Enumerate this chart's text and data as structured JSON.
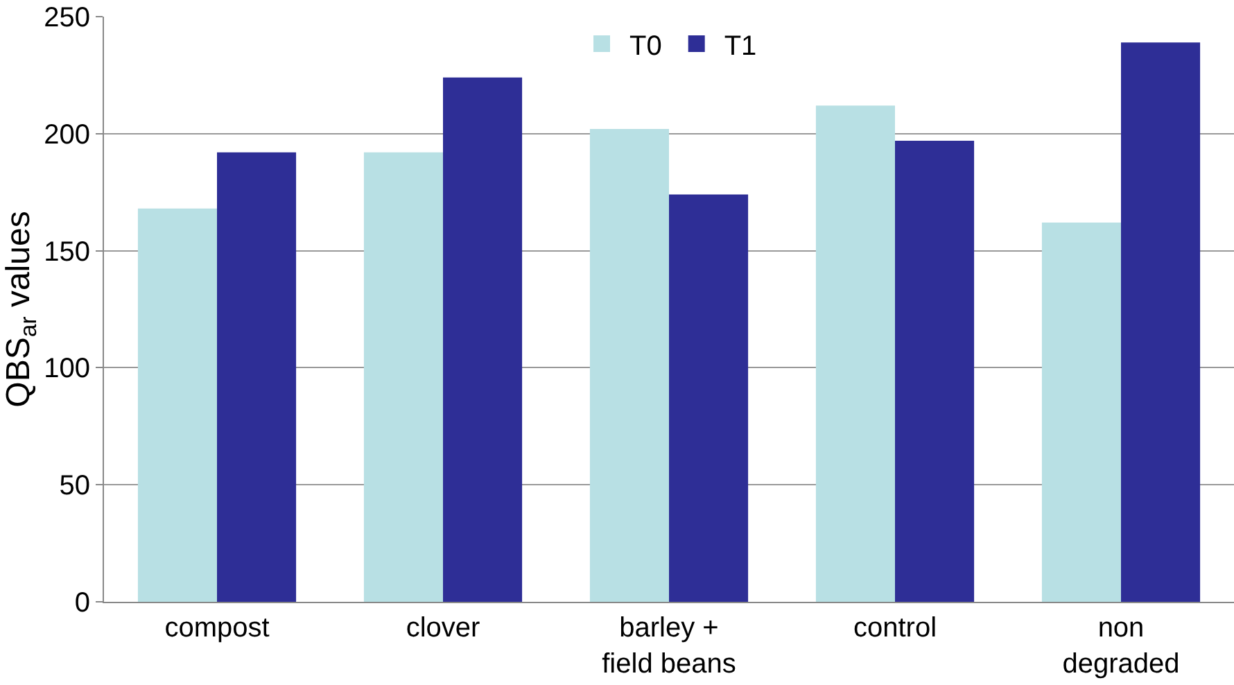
{
  "chart_data": {
    "type": "bar",
    "ylabel": "QBS$_{ar}$ values",
    "categories": [
      "compost",
      "clover",
      "barley +\nfield beans",
      "control",
      "non\ndegraded"
    ],
    "series": [
      {
        "name": "T0",
        "color": "#b8e0e4",
        "values": [
          168,
          192,
          202,
          212,
          162
        ]
      },
      {
        "name": "T1",
        "color": "#2e2e96",
        "values": [
          192,
          224,
          174,
          197,
          239
        ]
      }
    ],
    "ylim": [
      0,
      250
    ],
    "yticks": [
      0,
      50,
      100,
      150,
      200,
      250
    ],
    "grid": "y",
    "legend": "top"
  }
}
